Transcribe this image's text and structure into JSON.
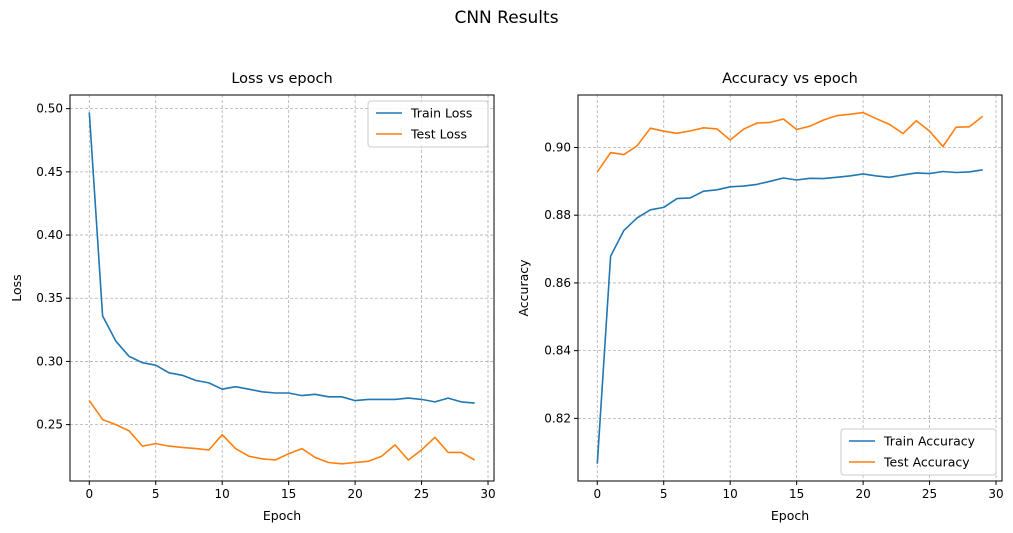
{
  "figure": {
    "suptitle": "CNN Results"
  },
  "colors": {
    "train": "#1f77b4",
    "test": "#ff7f0e",
    "grid": "#b0b0b0"
  },
  "chart_data": [
    {
      "type": "line",
      "title": "Loss vs epoch",
      "xlabel": "Epoch",
      "ylabel": "Loss",
      "xlim": [
        -1.45,
        30.45
      ],
      "ylim": [
        0.2054,
        0.5108
      ],
      "xticks": [
        0,
        5,
        10,
        15,
        20,
        25,
        30
      ],
      "yticks": [
        0.25,
        0.3,
        0.35,
        0.4,
        0.45,
        0.5
      ],
      "ytick_labels": [
        "0.25",
        "0.30",
        "0.35",
        "0.40",
        "0.45",
        "0.50"
      ],
      "grid": true,
      "legend": "top-right",
      "series": [
        {
          "name": "Train Loss",
          "x": [
            0,
            1,
            2,
            3,
            4,
            5,
            6,
            7,
            8,
            9,
            10,
            11,
            12,
            13,
            14,
            15,
            16,
            17,
            18,
            19,
            20,
            21,
            22,
            23,
            24,
            25,
            26,
            27,
            28,
            29
          ],
          "values": [
            0.497,
            0.336,
            0.316,
            0.304,
            0.299,
            0.297,
            0.291,
            0.289,
            0.285,
            0.283,
            0.278,
            0.28,
            0.278,
            0.276,
            0.275,
            0.275,
            0.273,
            0.274,
            0.272,
            0.272,
            0.269,
            0.27,
            0.27,
            0.27,
            0.271,
            0.27,
            0.268,
            0.271,
            0.268,
            0.267
          ]
        },
        {
          "name": "Test Loss",
          "x": [
            0,
            1,
            2,
            3,
            4,
            5,
            6,
            7,
            8,
            9,
            10,
            11,
            12,
            13,
            14,
            15,
            16,
            17,
            18,
            19,
            20,
            21,
            22,
            23,
            24,
            25,
            26,
            27,
            28,
            29
          ],
          "values": [
            0.269,
            0.254,
            0.25,
            0.245,
            0.233,
            0.235,
            0.233,
            0.232,
            0.231,
            0.23,
            0.242,
            0.231,
            0.225,
            0.223,
            0.222,
            0.227,
            0.231,
            0.224,
            0.22,
            0.219,
            0.22,
            0.221,
            0.225,
            0.234,
            0.222,
            0.23,
            0.24,
            0.228,
            0.228,
            0.222
          ]
        }
      ]
    },
    {
      "type": "line",
      "title": "Accuracy vs epoch",
      "xlabel": "Epoch",
      "ylabel": "Accuracy",
      "xlim": [
        -1.45,
        30.45
      ],
      "ylim": [
        0.8015,
        0.9155
      ],
      "xticks": [
        0,
        5,
        10,
        15,
        20,
        25,
        30
      ],
      "yticks": [
        0.82,
        0.84,
        0.86,
        0.88,
        0.9
      ],
      "ytick_labels": [
        "0.82",
        "0.84",
        "0.86",
        "0.88",
        "0.90"
      ],
      "grid": true,
      "legend": "bottom-right",
      "series": [
        {
          "name": "Train Accuracy",
          "x": [
            0,
            1,
            2,
            3,
            4,
            5,
            6,
            7,
            8,
            9,
            10,
            11,
            12,
            13,
            14,
            15,
            16,
            17,
            18,
            19,
            20,
            21,
            22,
            23,
            24,
            25,
            26,
            27,
            28,
            29
          ],
          "values": [
            0.8066,
            0.8679,
            0.8755,
            0.8792,
            0.8816,
            0.8823,
            0.8849,
            0.8851,
            0.8871,
            0.8875,
            0.8884,
            0.8886,
            0.8891,
            0.89,
            0.891,
            0.8904,
            0.8909,
            0.8908,
            0.8912,
            0.8916,
            0.8922,
            0.8916,
            0.8912,
            0.8919,
            0.8925,
            0.8923,
            0.8929,
            0.8926,
            0.8928,
            0.8934
          ]
        },
        {
          "name": "Test Accuracy",
          "x": [
            0,
            1,
            2,
            3,
            4,
            5,
            6,
            7,
            8,
            9,
            10,
            11,
            12,
            13,
            14,
            15,
            16,
            17,
            18,
            19,
            20,
            21,
            22,
            23,
            24,
            25,
            26,
            27,
            28,
            29
          ],
          "values": [
            0.8928,
            0.8985,
            0.8979,
            0.9005,
            0.9057,
            0.9048,
            0.9042,
            0.9049,
            0.9058,
            0.9055,
            0.9022,
            0.9054,
            0.9072,
            0.9074,
            0.9084,
            0.9053,
            0.9063,
            0.9081,
            0.9094,
            0.9098,
            0.9103,
            0.9085,
            0.9068,
            0.9041,
            0.9079,
            0.9048,
            0.9003,
            0.906,
            0.9061,
            0.9092
          ]
        }
      ]
    }
  ]
}
